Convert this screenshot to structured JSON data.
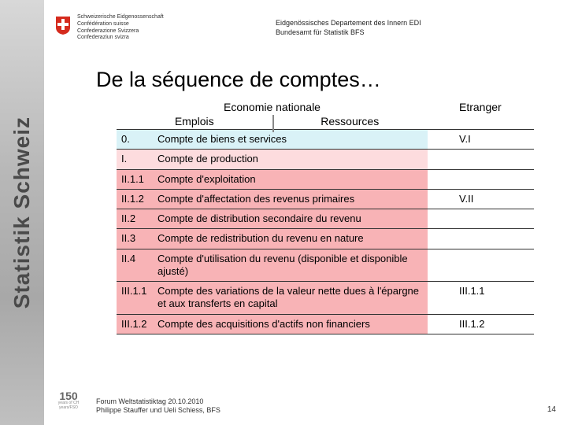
{
  "header": {
    "conf_lines": [
      "Schweizerische Eidgenossenschaft",
      "Confédération suisse",
      "Confederazione Svizzera",
      "Confederaziun svizra"
    ],
    "dept_line1": "Eidgenössisches Departement des Innern EDI",
    "dept_line2": "Bundesamt für Statistik BFS"
  },
  "sidebar_label": "Statistik Schweiz",
  "logo150_num": "150",
  "logo150_sub1": "years of CH",
  "logo150_sub2": "years/FSO",
  "title": "De la séquence de comptes…",
  "col_headers": {
    "economy": "Economie nationale",
    "emplois": "Emplois",
    "ressources": "Ressources",
    "etranger": "Etranger"
  },
  "rows": [
    {
      "num": "0.",
      "label": "Compte de biens et services",
      "etr": "V.I",
      "bg": "#d9f2f7"
    },
    {
      "num": "I.",
      "label": "Compte de production",
      "etr": "",
      "bg": "#fddcde"
    },
    {
      "num": "II.1.1",
      "label": "Compte d'exploitation",
      "etr": "",
      "bg": "#f8b3b6"
    },
    {
      "num": "II.1.2",
      "label": "Compte d'affectation des revenus primaires",
      "etr": "V.II",
      "bg": "#f8b3b6"
    },
    {
      "num": "II.2",
      "label": "Compte de distribution secondaire du revenu",
      "etr": "",
      "bg": "#f8b3b6"
    },
    {
      "num": "II.3",
      "label": "Compte de redistribution du revenu en nature",
      "etr": "",
      "bg": "#f8b3b6"
    },
    {
      "num": "II.4",
      "label": "Compte d'utilisation du revenu (disponible et disponible ajusté)",
      "etr": "",
      "bg": "#f8b3b6"
    },
    {
      "num": "III.1.1",
      "label": "Compte des variations de la valeur nette dues à l'épargne et aux transferts en capital",
      "etr": "III.1.1",
      "bg": "#f8b3b6"
    },
    {
      "num": "III.1.2",
      "label": "Compte des acquisitions d'actifs non financiers",
      "etr": "III.1.2",
      "bg": "#f8b3b6"
    }
  ],
  "footer": {
    "line1": "Forum Weltstatistiktag 20.10.2010",
    "line2": "Philippe Stauffer und Ueli Schiess, BFS"
  },
  "page_number": "14"
}
